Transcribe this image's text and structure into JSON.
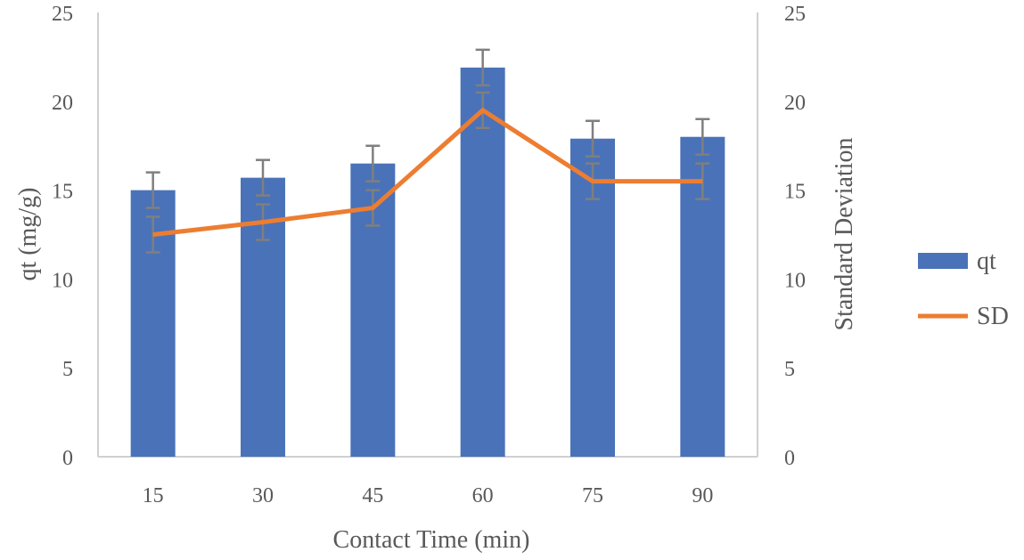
{
  "chart_data": {
    "type": "bar",
    "categories": [
      "15",
      "30",
      "45",
      "60",
      "75",
      "90"
    ],
    "xlabel": "Contact Time (min)",
    "ylabel": "qt (mg/g)",
    "y2label": "Standard Deviation",
    "ylim": [
      0,
      25
    ],
    "y2lim": [
      0,
      25
    ],
    "yticks": [
      "0",
      "5",
      "10",
      "15",
      "20",
      "25"
    ],
    "grid": false,
    "legend_position": "right",
    "series": [
      {
        "name": "qt",
        "kind": "bar",
        "axis": "left",
        "color": "#4a72b8",
        "values": [
          15.0,
          15.7,
          16.5,
          21.9,
          17.9,
          18.0
        ],
        "error": [
          1,
          1,
          1,
          1,
          1,
          1
        ]
      },
      {
        "name": "SD",
        "kind": "line",
        "axis": "right",
        "color": "#ed7d31",
        "values": [
          12.5,
          13.2,
          14.0,
          19.5,
          15.5,
          15.5
        ],
        "error": [
          1,
          1,
          1,
          1,
          1,
          1
        ]
      }
    ],
    "error_bar_color": "#7f7f7f",
    "axis_color": "#d0d0d0"
  }
}
